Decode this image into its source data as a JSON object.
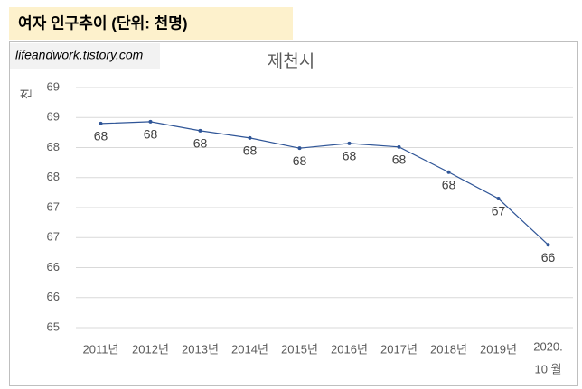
{
  "chart_data": {
    "type": "line",
    "header": "여자 인구추이 (단위: 천명)",
    "watermark": "lifeandwork.tistory.com",
    "title": "제천시",
    "y_label": "천",
    "categories": [
      "2011년",
      "2012년",
      "2013년",
      "2014년",
      "2015년",
      "2016년",
      "2017년",
      "2018년",
      "2019년",
      [
        "2020.",
        "10 월"
      ]
    ],
    "series": [
      {
        "name": "제천시",
        "color": "#2f5597",
        "values": [
          68.4,
          68.43,
          68.28,
          68.16,
          67.99,
          68.07,
          68.01,
          67.59,
          67.15,
          66.38
        ],
        "value_labels": [
          "68",
          "68",
          "68",
          "68",
          "68",
          "68",
          "68",
          "68",
          "67",
          "66"
        ]
      }
    ],
    "ylim": [
      65,
      69
    ],
    "yticks": [
      65,
      {
        "value": 65.5,
        "label": "66"
      },
      66,
      {
        "value": 66.5,
        "label": "67"
      },
      67,
      {
        "value": 67.5,
        "label": "68"
      },
      68,
      {
        "value": 68.5,
        "label": "69"
      },
      69
    ],
    "grid": true
  }
}
